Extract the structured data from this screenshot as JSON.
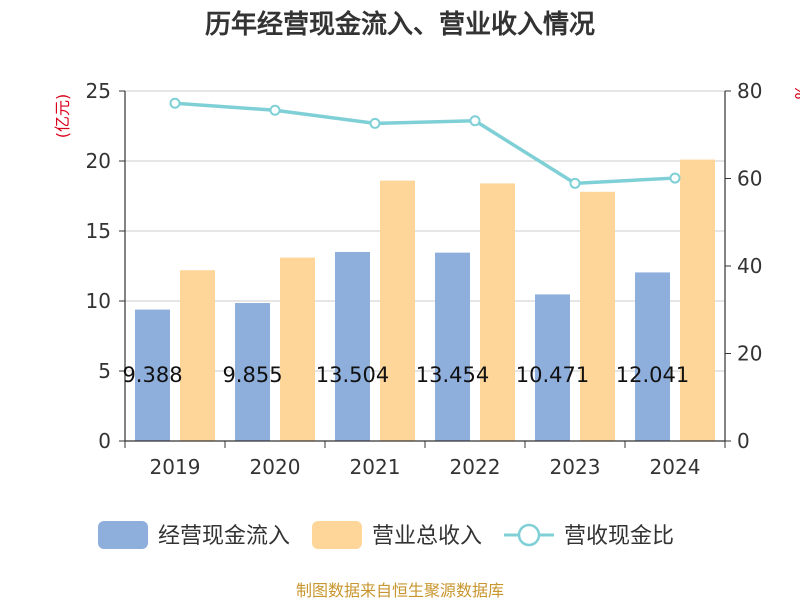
{
  "chart_data": {
    "type": "bar",
    "title": "历年经营现金流入、营业收入情况",
    "left_unit": "(亿元)",
    "right_unit": "%",
    "categories": [
      "2019",
      "2020",
      "2021",
      "2022",
      "2023",
      "2024"
    ],
    "series": [
      {
        "name": "经营现金流入",
        "type": "bar",
        "axis": "left",
        "color": "#8eaedc",
        "values": [
          9.388,
          9.855,
          13.504,
          13.454,
          10.471,
          12.041
        ],
        "labels": [
          "9.388",
          "9.855",
          "13.504",
          "13.454",
          "10.471",
          "12.041"
        ]
      },
      {
        "name": "营业总收入",
        "type": "bar",
        "axis": "left",
        "color": "#ffd699",
        "values": [
          12.2,
          13.1,
          18.6,
          18.4,
          17.8,
          20.1
        ]
      },
      {
        "name": "营收现金比",
        "type": "line",
        "axis": "right",
        "color": "#7fd0d6",
        "values": [
          77.2,
          75.6,
          72.6,
          73.2,
          58.9,
          60.1
        ]
      }
    ],
    "left_axis": {
      "min": 0,
      "max": 25,
      "ticks": [
        "0",
        "5",
        "10",
        "15",
        "20",
        "25"
      ]
    },
    "right_axis": {
      "min": 0,
      "max": 80,
      "ticks": [
        "0",
        "20",
        "40",
        "60",
        "80"
      ]
    },
    "grid": true,
    "legend_position": "bottom"
  },
  "source": "制图数据来自恒生聚源数据库"
}
